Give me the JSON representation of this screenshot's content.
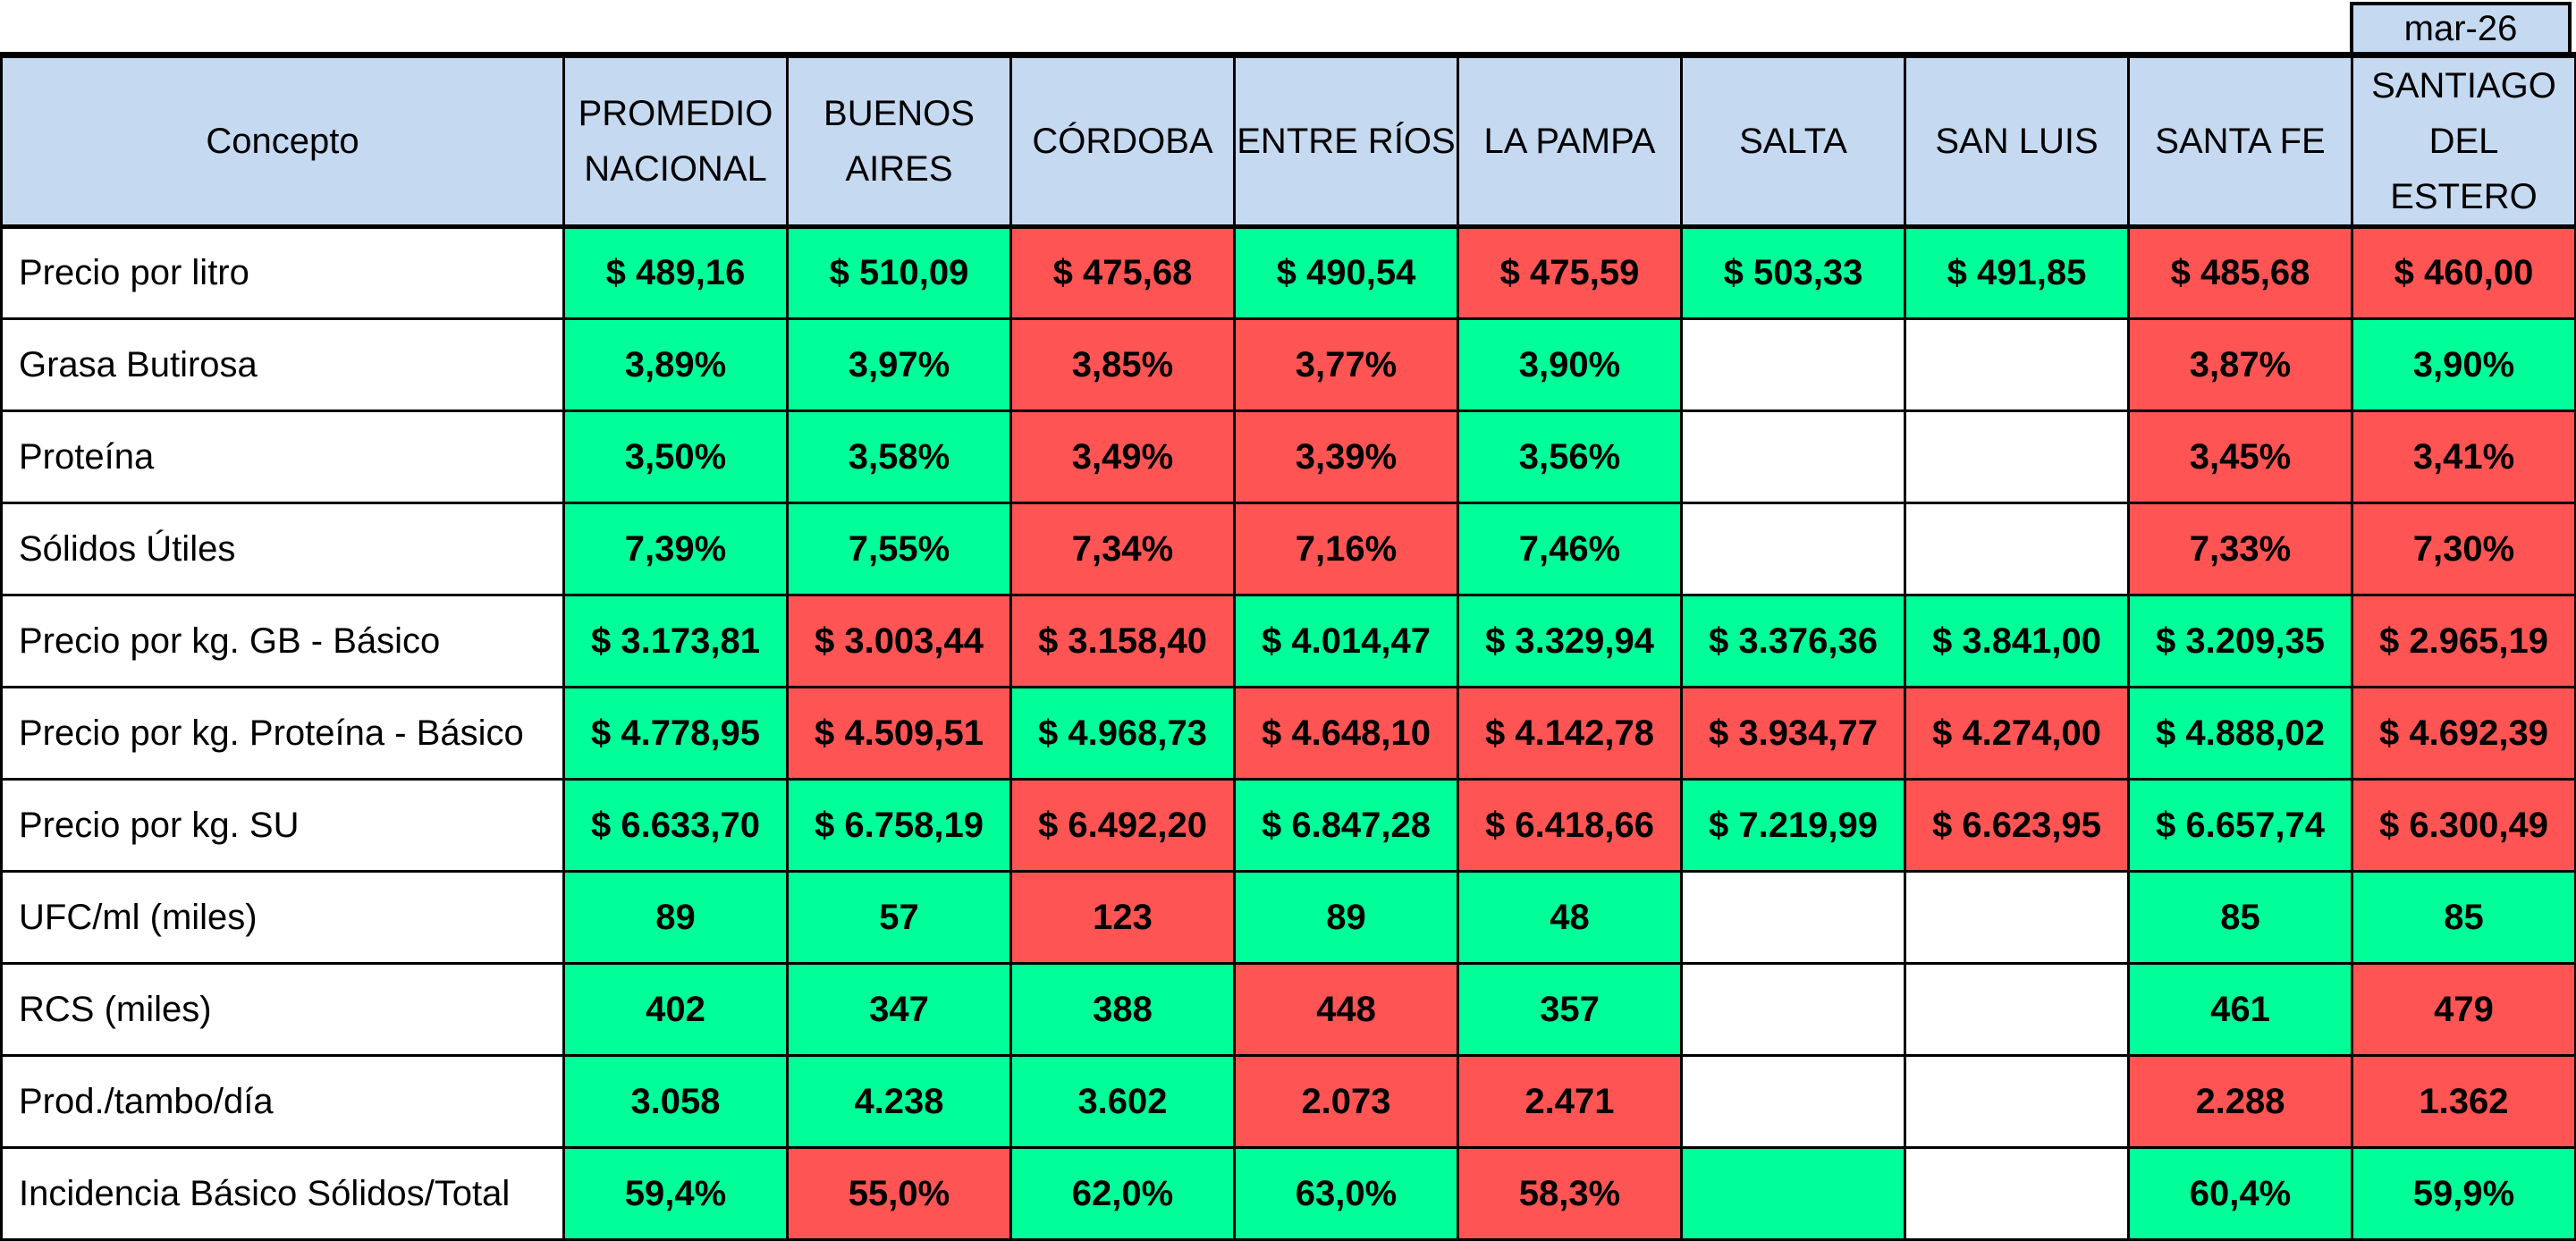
{
  "period": "mar-26",
  "header": {
    "concept": "Concepto",
    "columns": [
      [
        "PROMEDIO",
        "NACIONAL"
      ],
      [
        "BUENOS",
        "AIRES"
      ],
      [
        "CÓRDOBA"
      ],
      [
        "ENTRE RÍOS"
      ],
      [
        "LA PAMPA"
      ],
      [
        "SALTA"
      ],
      [
        "SAN LUIS"
      ],
      [
        "SANTA FE"
      ],
      [
        "SANTIAGO",
        "DEL ESTERO"
      ]
    ]
  },
  "colors": {
    "good": "#00ff99",
    "bad": "#ff5454",
    "empty": "#ffffff",
    "header": "#c5d9f1"
  },
  "rows": [
    {
      "label": "Precio por litro",
      "cells": [
        [
          "$ 489,16",
          "g"
        ],
        [
          "$ 510,09",
          "g"
        ],
        [
          "$ 475,68",
          "r"
        ],
        [
          "$ 490,54",
          "g"
        ],
        [
          "$ 475,59",
          "r"
        ],
        [
          "$ 503,33",
          "g"
        ],
        [
          "$ 491,85",
          "g"
        ],
        [
          "$ 485,68",
          "r"
        ],
        [
          "$ 460,00",
          "r"
        ]
      ]
    },
    {
      "label": "Grasa Butirosa",
      "cells": [
        [
          "3,89%",
          "g"
        ],
        [
          "3,97%",
          "g"
        ],
        [
          "3,85%",
          "r"
        ],
        [
          "3,77%",
          "r"
        ],
        [
          "3,90%",
          "g"
        ],
        [
          "",
          "w"
        ],
        [
          "",
          "w"
        ],
        [
          "3,87%",
          "r"
        ],
        [
          "3,90%",
          "g"
        ]
      ]
    },
    {
      "label": "Proteína",
      "cells": [
        [
          "3,50%",
          "g"
        ],
        [
          "3,58%",
          "g"
        ],
        [
          "3,49%",
          "r"
        ],
        [
          "3,39%",
          "r"
        ],
        [
          "3,56%",
          "g"
        ],
        [
          "",
          "w"
        ],
        [
          "",
          "w"
        ],
        [
          "3,45%",
          "r"
        ],
        [
          "3,41%",
          "r"
        ]
      ]
    },
    {
      "label": "Sólidos Útiles",
      "cells": [
        [
          "7,39%",
          "g"
        ],
        [
          "7,55%",
          "g"
        ],
        [
          "7,34%",
          "r"
        ],
        [
          "7,16%",
          "r"
        ],
        [
          "7,46%",
          "g"
        ],
        [
          "",
          "w"
        ],
        [
          "",
          "w"
        ],
        [
          "7,33%",
          "r"
        ],
        [
          "7,30%",
          "r"
        ]
      ]
    },
    {
      "label": "Precio por kg. GB - Básico",
      "cells": [
        [
          "$ 3.173,81",
          "g"
        ],
        [
          "$ 3.003,44",
          "r"
        ],
        [
          "$ 3.158,40",
          "r"
        ],
        [
          "$ 4.014,47",
          "g"
        ],
        [
          "$ 3.329,94",
          "g"
        ],
        [
          "$ 3.376,36",
          "g"
        ],
        [
          "$ 3.841,00",
          "g"
        ],
        [
          "$ 3.209,35",
          "g"
        ],
        [
          "$ 2.965,19",
          "r"
        ]
      ]
    },
    {
      "label": "Precio por kg. Proteína - Básico",
      "cells": [
        [
          "$ 4.778,95",
          "g"
        ],
        [
          "$ 4.509,51",
          "r"
        ],
        [
          "$ 4.968,73",
          "g"
        ],
        [
          "$ 4.648,10",
          "r"
        ],
        [
          "$ 4.142,78",
          "r"
        ],
        [
          "$ 3.934,77",
          "r"
        ],
        [
          "$ 4.274,00",
          "r"
        ],
        [
          "$ 4.888,02",
          "g"
        ],
        [
          "$ 4.692,39",
          "r"
        ]
      ]
    },
    {
      "label": "Precio por kg. SU",
      "cells": [
        [
          "$ 6.633,70",
          "g"
        ],
        [
          "$ 6.758,19",
          "g"
        ],
        [
          "$ 6.492,20",
          "r"
        ],
        [
          "$ 6.847,28",
          "g"
        ],
        [
          "$ 6.418,66",
          "r"
        ],
        [
          "$ 7.219,99",
          "g"
        ],
        [
          "$ 6.623,95",
          "r"
        ],
        [
          "$ 6.657,74",
          "g"
        ],
        [
          "$ 6.300,49",
          "r"
        ]
      ]
    },
    {
      "label": "UFC/ml (miles)",
      "cells": [
        [
          "89",
          "g"
        ],
        [
          "57",
          "g"
        ],
        [
          "123",
          "r"
        ],
        [
          "89",
          "g"
        ],
        [
          "48",
          "g"
        ],
        [
          "",
          "w"
        ],
        [
          "",
          "w"
        ],
        [
          "85",
          "g"
        ],
        [
          "85",
          "g"
        ]
      ]
    },
    {
      "label": "RCS (miles)",
      "cells": [
        [
          "402",
          "g"
        ],
        [
          "347",
          "g"
        ],
        [
          "388",
          "g"
        ],
        [
          "448",
          "r"
        ],
        [
          "357",
          "g"
        ],
        [
          "",
          "w"
        ],
        [
          "",
          "w"
        ],
        [
          "461",
          "g"
        ],
        [
          "479",
          "r"
        ]
      ]
    },
    {
      "label": "Prod./tambo/día",
      "cells": [
        [
          "3.058",
          "g"
        ],
        [
          "4.238",
          "g"
        ],
        [
          "3.602",
          "g"
        ],
        [
          "2.073",
          "r"
        ],
        [
          "2.471",
          "r"
        ],
        [
          "",
          "w"
        ],
        [
          "",
          "w"
        ],
        [
          "2.288",
          "r"
        ],
        [
          "1.362",
          "r"
        ]
      ]
    },
    {
      "label": "Incidencia Básico Sólidos/Total",
      "cells": [
        [
          "59,4%",
          "g"
        ],
        [
          "55,0%",
          "r"
        ],
        [
          "62,0%",
          "g"
        ],
        [
          "63,0%",
          "g"
        ],
        [
          "58,3%",
          "r"
        ],
        [
          "",
          "g"
        ],
        [
          "",
          "w"
        ],
        [
          "60,4%",
          "g"
        ],
        [
          "59,9%",
          "g"
        ]
      ]
    }
  ]
}
